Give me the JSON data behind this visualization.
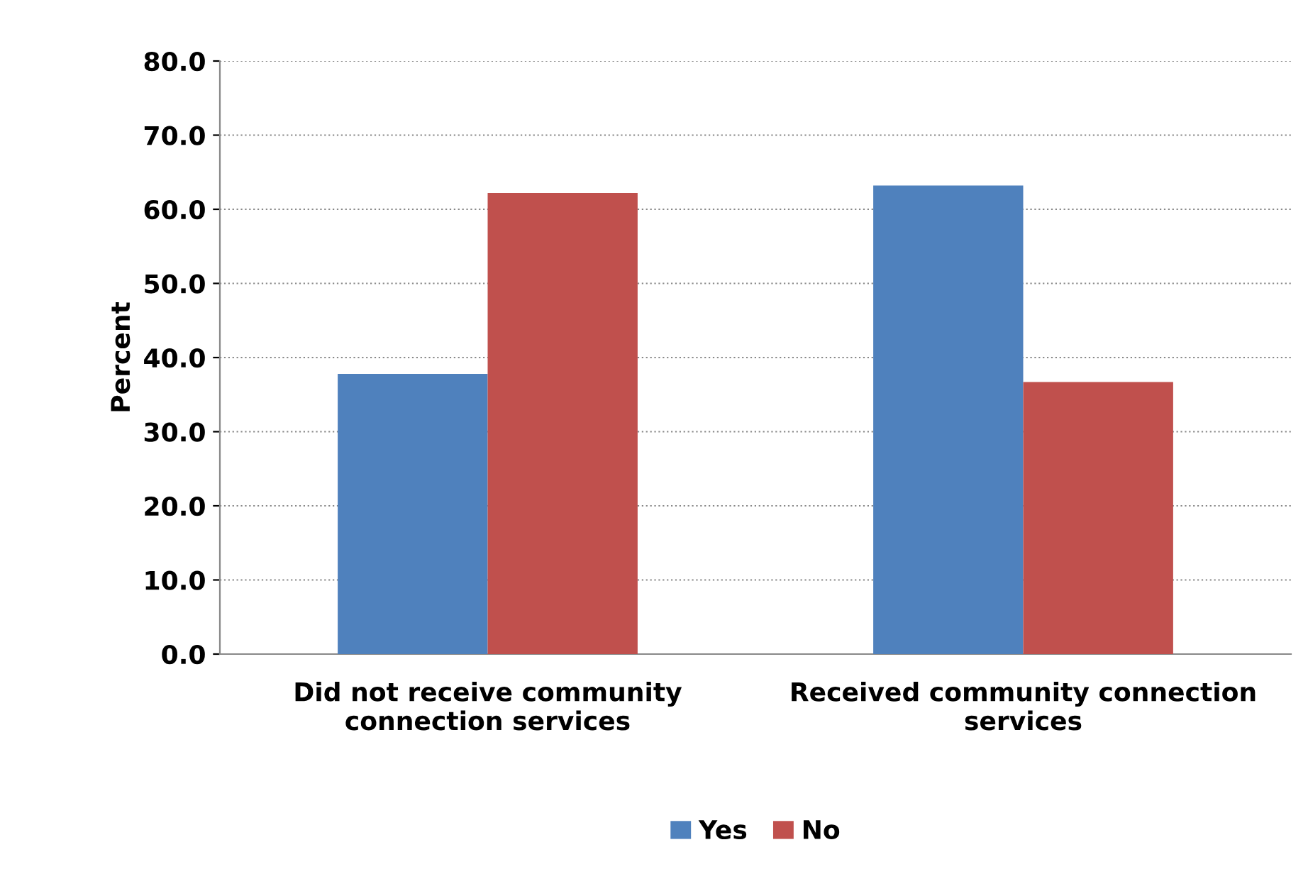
{
  "chart_data": {
    "type": "bar",
    "ylabel": "Percent",
    "categories": [
      "Did not receive community\nconnection services",
      "Received community connection\nservices"
    ],
    "series": [
      {
        "name": "Yes",
        "color": "#4f81bd",
        "values": [
          37.8,
          63.2
        ]
      },
      {
        "name": "No",
        "color": "#c0504d",
        "values": [
          62.2,
          36.7
        ]
      }
    ],
    "ylim": [
      0,
      80
    ],
    "yticks": [
      {
        "value": 0,
        "label": "0.0"
      },
      {
        "value": 10,
        "label": "10.0"
      },
      {
        "value": 20,
        "label": "20.0"
      },
      {
        "value": 30,
        "label": "30.0"
      },
      {
        "value": 40,
        "label": "40.0"
      },
      {
        "value": 50,
        "label": "50.0"
      },
      {
        "value": 60,
        "label": "60.0"
      },
      {
        "value": 70,
        "label": "70.0"
      },
      {
        "value": 80,
        "label": "80.0"
      }
    ],
    "grid": "y",
    "legend": "bottom"
  }
}
